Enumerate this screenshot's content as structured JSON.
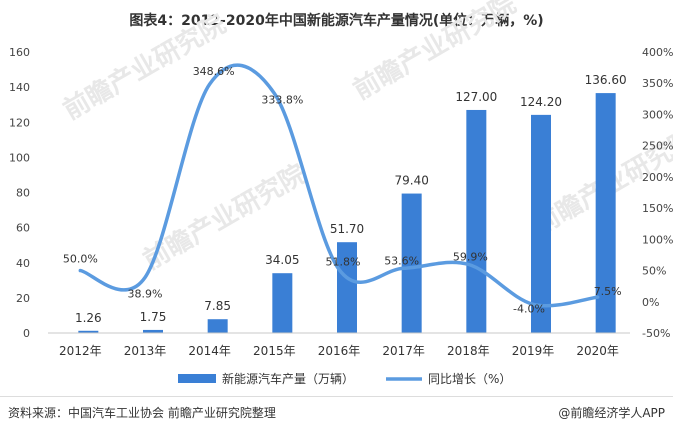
{
  "chart_data": {
    "type": "bar",
    "title": "图表4：2012-2020年中国新能源汽车产量情况(单位：万辆，%)",
    "categories": [
      "2012年",
      "2013年",
      "2014年",
      "2015年",
      "2016年",
      "2017年",
      "2018年",
      "2019年",
      "2020年"
    ],
    "series": [
      {
        "name": "新能源汽车产量（万辆）",
        "type": "bar",
        "axis": "left",
        "values": [
          1.26,
          1.75,
          7.85,
          34.05,
          51.7,
          79.4,
          127.0,
          124.2,
          136.6
        ],
        "labels": [
          "1.26",
          "1.75",
          "7.85",
          "34.05",
          "51.70",
          "79.40",
          "127.00",
          "124.20",
          "136.60"
        ],
        "color": "#3a7fd5"
      },
      {
        "name": "同比增长（%）",
        "type": "line",
        "axis": "right",
        "values": [
          50.0,
          38.9,
          348.6,
          333.8,
          51.8,
          53.6,
          59.9,
          -4.0,
          7.5
        ],
        "labels": [
          "50.0%",
          "38.9%",
          "348.6%",
          "333.8%",
          "51.8%",
          "53.6%",
          "59.9%",
          "-4.0%",
          "7.5%"
        ],
        "color": "#5b9be0"
      }
    ],
    "y_left": {
      "min": 0,
      "max": 160,
      "ticks": [
        "0",
        "20",
        "40",
        "60",
        "80",
        "100",
        "120",
        "140",
        "160"
      ]
    },
    "y_right": {
      "min": -50,
      "max": 400,
      "ticks": [
        "-50%",
        "0%",
        "50%",
        "100%",
        "150%",
        "200%",
        "250%",
        "300%",
        "350%",
        "400%"
      ]
    },
    "grid": false,
    "legend_position": "bottom"
  },
  "footer": {
    "source": "资料来源：中国汽车工业协会 前瞻产业研究院整理",
    "credit": "@前瞻经济学人APP"
  },
  "watermark_text": "前瞻产业研究院"
}
